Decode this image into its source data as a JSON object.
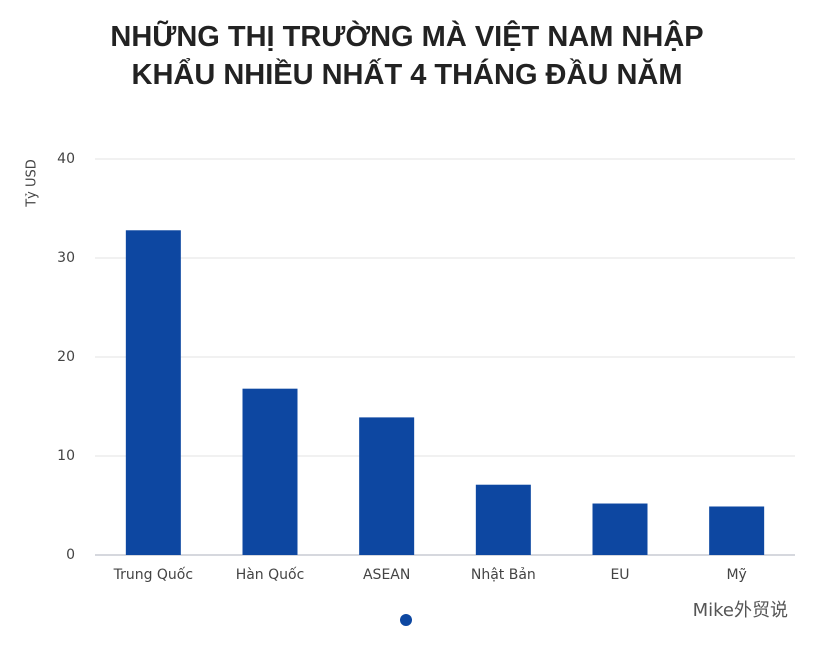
{
  "chart_data": {
    "type": "bar",
    "title": "NHỮNG THỊ TRƯỜNG MÀ VIỆT NAM NHẬP KHẨU NHIỀU NHẤT 4 THÁNG ĐẦU NĂM",
    "y_label": "Tỷ USD",
    "categories": [
      "Trung Quốc",
      "Hàn Quốc",
      "ASEAN",
      "Nhật Bản",
      "EU",
      "Mỹ"
    ],
    "values": [
      32.8,
      16.8,
      13.9,
      7.1,
      5.2,
      4.9
    ],
    "color": "#0d47a1",
    "ylim": [
      0,
      40
    ],
    "yticks": [
      0,
      10,
      20,
      30,
      40
    ],
    "grid": true
  },
  "watermark": "Mike外贸说"
}
